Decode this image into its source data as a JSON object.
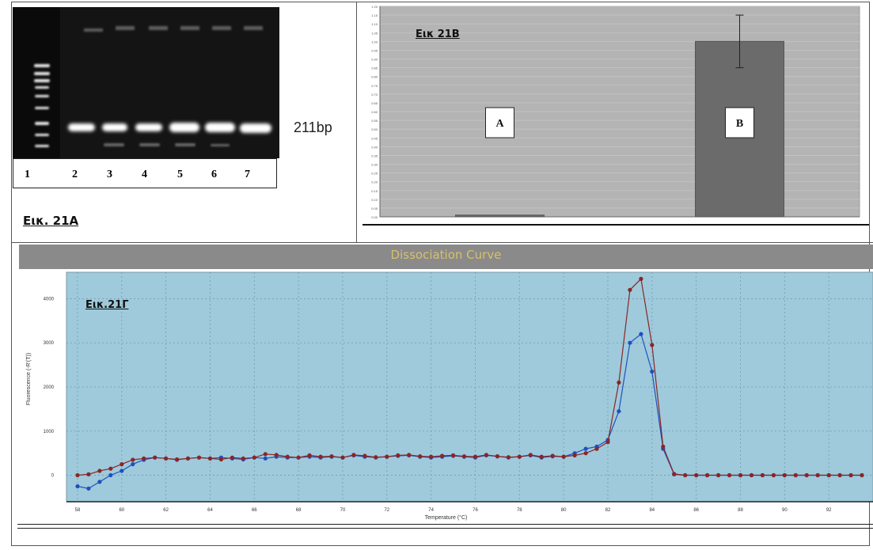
{
  "panel_a": {
    "caption": "Εικ. 21Α",
    "band_label": "211bp",
    "lane_numbers": [
      "1",
      "2",
      "3",
      "4",
      "5",
      "6",
      "7"
    ]
  },
  "panel_b": {
    "caption": "Εικ 21Β"
  },
  "panel_c": {
    "caption": "Εικ.21Γ",
    "header_title": "Dissociation Curve"
  },
  "chart_data": [
    {
      "type": "bar",
      "categories": [
        "A",
        "B"
      ],
      "values": [
        0.01,
        1.0
      ],
      "error": [
        0,
        0.15
      ],
      "ylim": [
        0,
        1.2
      ],
      "grid": true,
      "colors": {
        "bar": "#6b6b6b",
        "plot_bg": "#b4b4b4"
      }
    },
    {
      "type": "line",
      "xlabel": "Temperature (°C)",
      "ylabel": "Fluorescence (-R'(T))",
      "xlim": [
        57.5,
        94
      ],
      "ylim": [
        -600,
        4600
      ],
      "xticks": [
        58,
        60,
        62,
        64,
        66,
        68,
        70,
        72,
        74,
        76,
        78,
        80,
        82,
        84,
        86,
        88,
        90,
        92
      ],
      "yticks": [
        0,
        1000,
        2000,
        3000,
        4000
      ],
      "grid": true,
      "colors": {
        "plot_bg": "#9ecadb",
        "series_1": "#1f4fbf",
        "series_2": "#8b2525"
      },
      "x": [
        58,
        58.5,
        59,
        59.5,
        60,
        60.5,
        61,
        61.5,
        62,
        62.5,
        63,
        63.5,
        64,
        64.5,
        65,
        65.5,
        66,
        66.5,
        67,
        67.5,
        68,
        68.5,
        69,
        69.5,
        70,
        70.5,
        71,
        71.5,
        72,
        72.5,
        73,
        73.5,
        74,
        74.5,
        75,
        75.5,
        76,
        76.5,
        77,
        77.5,
        78,
        78.5,
        79,
        79.5,
        80,
        80.5,
        81,
        81.5,
        82,
        82.5,
        83,
        83.5,
        84,
        84.5,
        85,
        85.5,
        86,
        86.5,
        87,
        87.5,
        88,
        88.5,
        89,
        89.5,
        90,
        90.5,
        91,
        91.5,
        92,
        92.5,
        93,
        93.5
      ],
      "series": [
        {
          "values": [
            -250,
            -300,
            -150,
            0,
            100,
            250,
            350,
            400,
            380,
            350,
            380,
            400,
            380,
            400,
            380,
            360,
            400,
            380,
            420,
            400,
            400,
            420,
            400,
            420,
            400,
            450,
            420,
            400,
            420,
            440,
            450,
            420,
            400,
            420,
            440,
            420,
            400,
            450,
            430,
            400,
            420,
            450,
            400,
            430,
            420,
            500,
            600,
            650,
            800,
            1450,
            3000,
            3200,
            2350,
            600,
            20,
            0,
            0,
            0,
            0,
            0,
            0,
            0,
            0,
            0,
            0,
            0,
            0,
            0,
            0,
            0,
            0,
            0
          ]
        },
        {
          "values": [
            0,
            20,
            100,
            150,
            250,
            350,
            380,
            400,
            380,
            360,
            380,
            400,
            380,
            360,
            400,
            380,
            400,
            480,
            460,
            420,
            400,
            450,
            420,
            430,
            400,
            460,
            440,
            410,
            420,
            450,
            460,
            430,
            420,
            440,
            450,
            430,
            420,
            460,
            430,
            410,
            420,
            460,
            420,
            440,
            420,
            450,
            500,
            600,
            750,
            2100,
            4200,
            4450,
            2950,
            650,
            30,
            0,
            0,
            0,
            0,
            0,
            0,
            0,
            0,
            0,
            0,
            0,
            0,
            0,
            0,
            0,
            0,
            0
          ]
        }
      ]
    }
  ]
}
